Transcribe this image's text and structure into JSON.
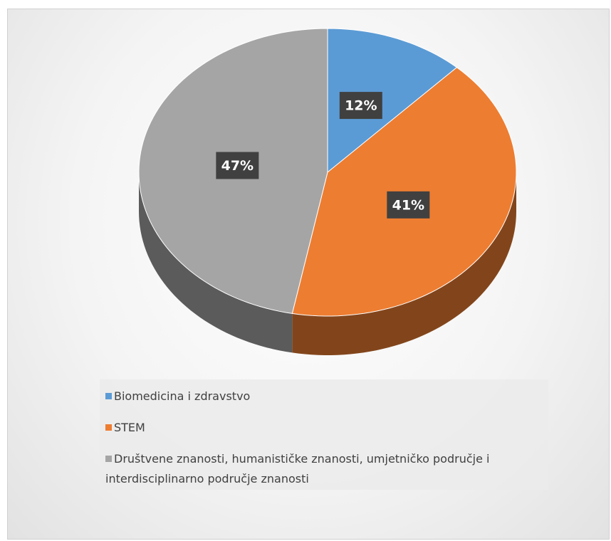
{
  "chart_data": {
    "type": "pie",
    "categories": [
      "Biomedicina i zdravstvo",
      "STEM",
      "Društvene znanosti, humanističke znanosti, umjetničko područje i interdisciplinarno područje znanosti"
    ],
    "values": [
      12,
      41,
      47
    ],
    "value_labels": [
      "12%",
      "41%",
      "47%"
    ],
    "colors": [
      "#5b9bd5",
      "#ed7d31",
      "#a5a5a5"
    ],
    "legend": "bottom"
  }
}
